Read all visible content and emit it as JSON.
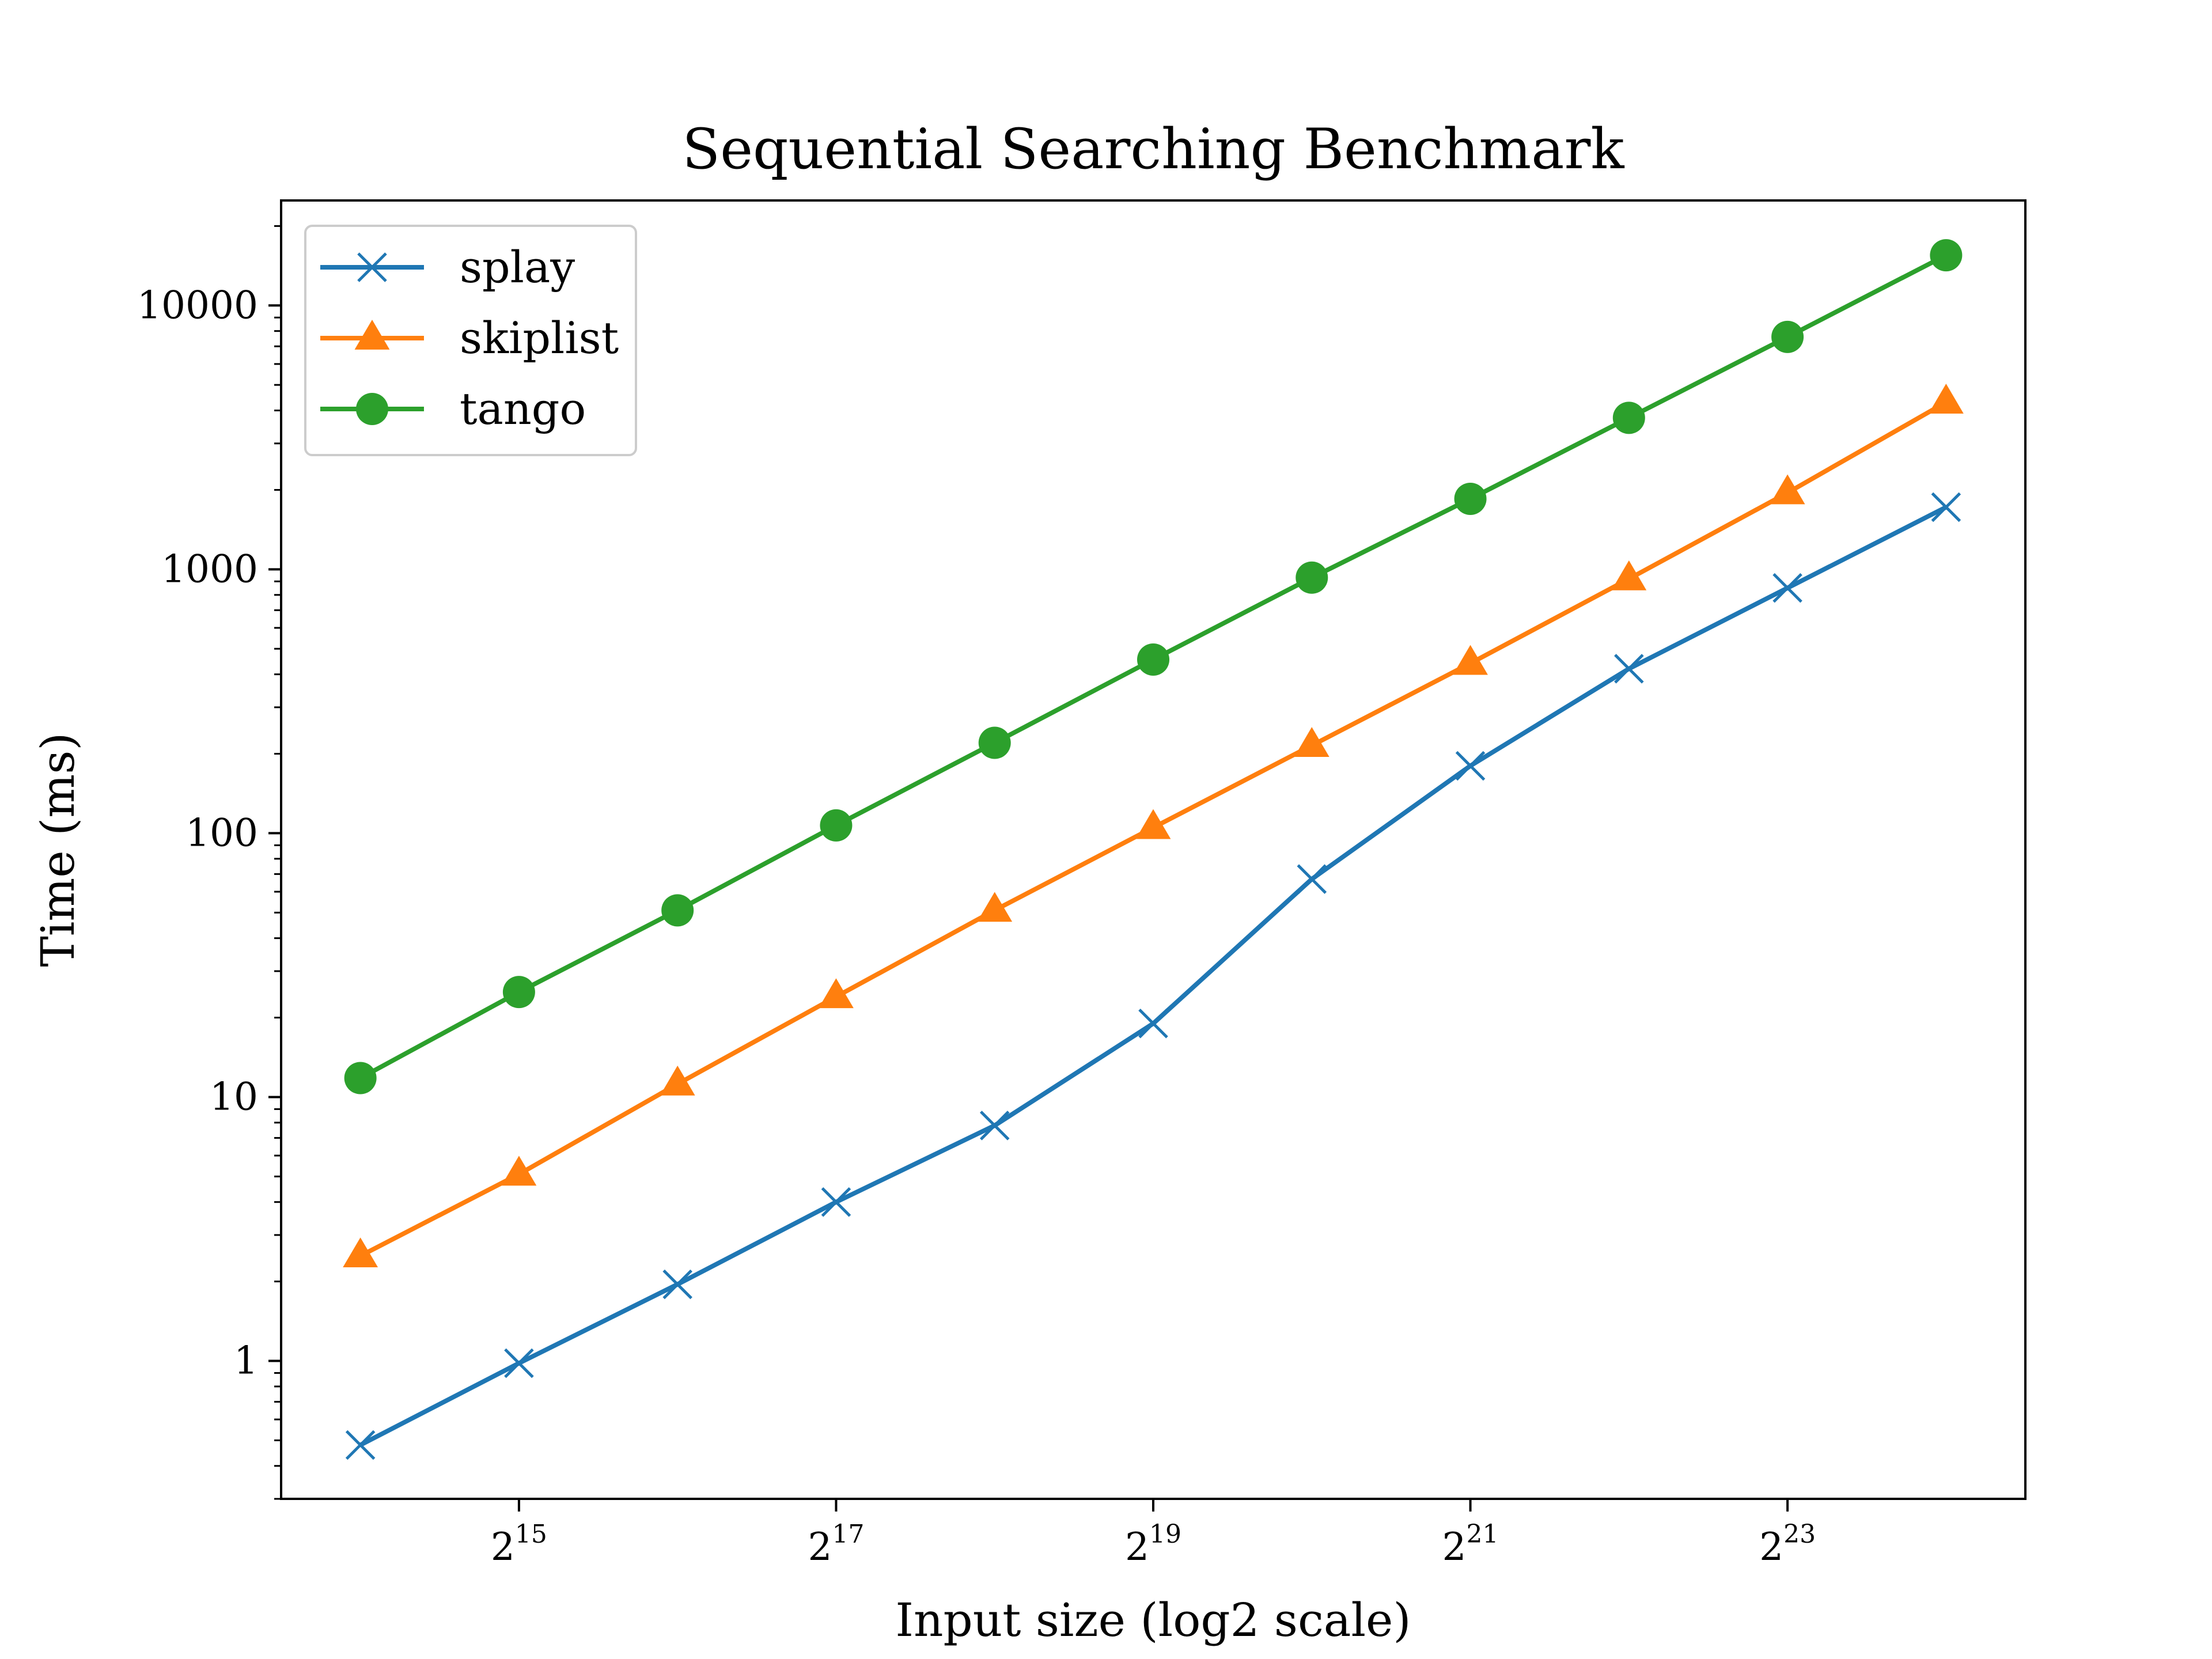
{
  "chart_data": {
    "type": "line",
    "title": "Sequential Searching Benchmark",
    "xlabel": "Input size (log2 scale)",
    "ylabel": "Time (ms)",
    "x_scale": "log2",
    "y_scale": "log10",
    "x": [
      16384,
      32768,
      65536,
      131072,
      262144,
      524288,
      1048576,
      2097152,
      4194304,
      8388608,
      16777216
    ],
    "xlim": [
      11585,
      23726566
    ],
    "ylim": [
      0.3,
      25000
    ],
    "x_ticks": [
      {
        "base": "2",
        "exp": "15",
        "value": 32768
      },
      {
        "base": "2",
        "exp": "17",
        "value": 131072
      },
      {
        "base": "2",
        "exp": "19",
        "value": 524288
      },
      {
        "base": "2",
        "exp": "21",
        "value": 2097152
      },
      {
        "base": "2",
        "exp": "23",
        "value": 8388608
      }
    ],
    "y_ticks": [
      {
        "label": "1",
        "value": 1
      },
      {
        "label": "10",
        "value": 10
      },
      {
        "label": "100",
        "value": 100
      },
      {
        "label": "1000",
        "value": 1000
      },
      {
        "label": "10000",
        "value": 10000
      }
    ],
    "grid": false,
    "legend_position": "top-left",
    "series": [
      {
        "name": "splay",
        "color": "#1f77b4",
        "marker": "x",
        "values": [
          0.48,
          0.98,
          1.95,
          4.0,
          7.8,
          19,
          67,
          180,
          420,
          850,
          1720
        ]
      },
      {
        "name": "skiplist",
        "color": "#ff7f0e",
        "marker": "triangle",
        "values": [
          2.5,
          5.1,
          11.2,
          24,
          51,
          105,
          215,
          440,
          920,
          1950,
          4300
        ]
      },
      {
        "name": "tango",
        "color": "#2ca02c",
        "marker": "circle",
        "values": [
          11.8,
          25,
          51,
          107,
          220,
          455,
          930,
          1850,
          3750,
          7600,
          15500
        ]
      }
    ]
  }
}
